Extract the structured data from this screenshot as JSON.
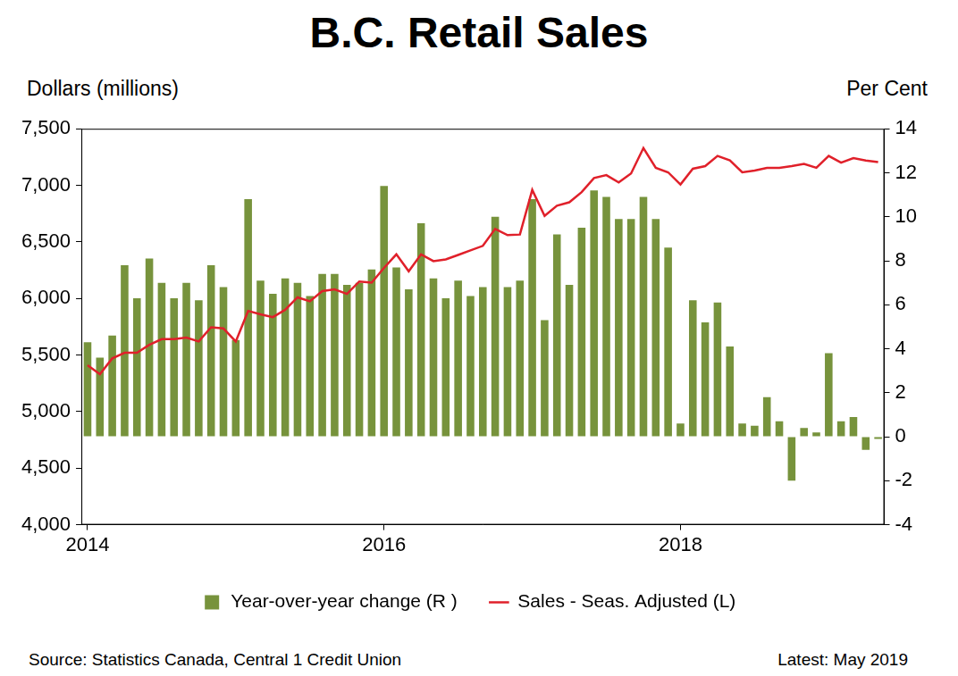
{
  "chart_data": {
    "type": "bar",
    "title": "B.C. Retail Sales",
    "ylabel": "Dollars (millions)",
    "y2label": "Per Cent",
    "annotations": [
      "Source: Statistics Canada, Central 1 Credit Union",
      "Latest: May 2019"
    ],
    "categories": [
      "2014",
      null,
      null,
      null,
      null,
      null,
      null,
      null,
      null,
      null,
      null,
      null,
      null,
      null,
      null,
      null,
      null,
      null,
      null,
      null,
      null,
      null,
      null,
      null,
      "2016",
      null,
      null,
      null,
      null,
      null,
      null,
      null,
      null,
      null,
      null,
      null,
      null,
      null,
      null,
      null,
      null,
      null,
      null,
      null,
      null,
      null,
      null,
      null,
      "2018",
      null,
      null,
      null,
      null,
      null,
      null,
      null,
      null,
      null,
      null,
      null,
      null,
      null,
      null,
      null,
      null
    ],
    "series": [
      {
        "name": "Year-over-year change (R )",
        "type": "bar",
        "axis": "y2",
        "color": "#77933c",
        "values": [
          4.3,
          3.6,
          4.6,
          7.8,
          6.3,
          8.1,
          7.0,
          6.3,
          7.0,
          6.2,
          7.8,
          6.8,
          4.4,
          10.8,
          7.1,
          6.5,
          7.2,
          7.0,
          6.4,
          7.4,
          7.4,
          6.9,
          7.0,
          7.6,
          11.4,
          7.7,
          6.7,
          9.7,
          7.2,
          6.3,
          7.1,
          6.4,
          6.8,
          10.0,
          6.8,
          7.1,
          10.8,
          5.3,
          9.2,
          6.9,
          9.5,
          11.2,
          10.9,
          9.9,
          9.9,
          10.9,
          9.9,
          8.6,
          0.6,
          6.2,
          5.2,
          6.1,
          4.1,
          0.6,
          0.5,
          1.8,
          0.7,
          -2.0,
          0.4,
          0.2,
          3.8,
          0.7,
          0.9,
          -0.6,
          -0.1
        ]
      },
      {
        "name": "Sales - Seas. Adjusted (L)",
        "type": "line",
        "axis": "y",
        "color": "#e0202a",
        "values": [
          5410,
          5330,
          5470,
          5520,
          5520,
          5590,
          5640,
          5640,
          5655,
          5620,
          5745,
          5735,
          5620,
          5890,
          5860,
          5835,
          5900,
          6010,
          5975,
          6065,
          6080,
          6040,
          6150,
          6140,
          6270,
          6390,
          6240,
          6390,
          6330,
          6345,
          6385,
          6425,
          6465,
          6615,
          6560,
          6565,
          6960,
          6730,
          6820,
          6850,
          6940,
          7065,
          7090,
          7025,
          7105,
          7330,
          7155,
          7115,
          7008,
          7147,
          7170,
          7260,
          7220,
          7115,
          7130,
          7155,
          7155,
          7170,
          7190,
          7155,
          7260,
          7200,
          7240,
          7220,
          7205
        ]
      }
    ],
    "ylim": [
      4000,
      7500
    ],
    "yticks": [
      {
        "value": 4000,
        "label": "4,000"
      },
      {
        "value": 4500,
        "label": "4,500"
      },
      {
        "value": 5000,
        "label": "5,000"
      },
      {
        "value": 5500,
        "label": "5,500"
      },
      {
        "value": 6000,
        "label": "6,000"
      },
      {
        "value": 6500,
        "label": "6,500"
      },
      {
        "value": 7000,
        "label": "7,000"
      },
      {
        "value": 7500,
        "label": "7,500"
      }
    ],
    "y2lim": [
      -4,
      14
    ],
    "y2ticks": [
      -4,
      -2,
      0,
      2,
      4,
      6,
      8,
      10,
      12,
      14
    ],
    "grid": false,
    "legend": "bottom"
  }
}
